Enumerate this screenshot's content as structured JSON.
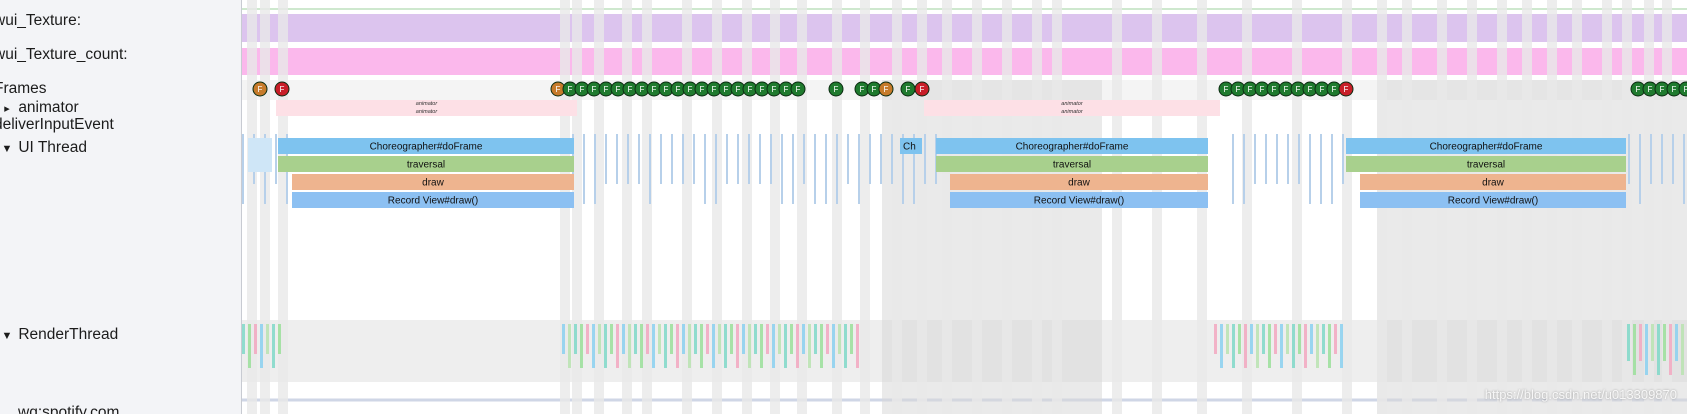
{
  "tracks": [
    {
      "id": "wui_texture",
      "label": "wui_Texture:",
      "arrow": ""
    },
    {
      "id": "wui_texture_count",
      "label": "wui_Texture_count:",
      "arrow": ""
    },
    {
      "id": "frames",
      "label": "Frames",
      "arrow": ""
    },
    {
      "id": "animator",
      "label": "animator",
      "arrow": "▸"
    },
    {
      "id": "deliver_input",
      "label": "deliverInputEvent",
      "arrow": ""
    },
    {
      "id": "ui_thread",
      "label": "UI Thread",
      "arrow": "▼"
    },
    {
      "id": "render_thread",
      "label": "RenderThread",
      "arrow": "▼"
    },
    {
      "id": "bottom_track",
      "label": "wq:spotify.com",
      "arrow": ""
    }
  ],
  "slice_labels": {
    "choreographer": "Choreographer#doFrame",
    "choreographer_short": "Ch",
    "traversal": "traversal",
    "draw": "draw",
    "record": "Record View#draw()",
    "animator": "animator"
  },
  "frame_marker_label": "F",
  "colors": {
    "frame_green": "#1f7a2e",
    "frame_orange": "#c67a2a",
    "frame_red": "#c81e28",
    "choreographer": "#7ec3ef",
    "traversal": "#a8d08d",
    "draw": "#eeb48f",
    "record": "#8cc0f2",
    "texture": "#dcc4ee",
    "texture_count": "#fbb8ec",
    "animator_bar": "#fde0e6"
  },
  "watermark": "https://blog.csdn.net/u013309870"
}
